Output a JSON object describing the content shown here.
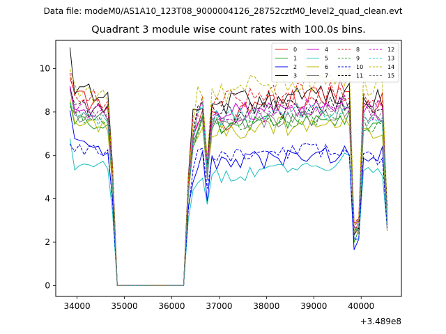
{
  "figure": {
    "suptitle": "Data file: modeM0/AS1A10_123T08_9000004126_28752cztM0_level2_quad_clean.evt",
    "title": "Quadrant 3 module wise count rates with 100.0s bins."
  },
  "chart_data": {
    "type": "line",
    "title": "Quadrant 3 module wise count rates with 100.0s bins.",
    "xlabel": "",
    "ylabel": "",
    "x_offset_label": "+3.489e8",
    "xlim": [
      33550,
      40850
    ],
    "ylim": [
      -0.5,
      11.3
    ],
    "xticks": [
      34000,
      35000,
      36000,
      37000,
      38000,
      39000,
      40000
    ],
    "xtick_labels": [
      "34000",
      "35000",
      "36000",
      "37000",
      "38000",
      "39000",
      "40000"
    ],
    "yticks": [
      0,
      2,
      4,
      6,
      8,
      10
    ],
    "ytick_labels": [
      "0",
      "2",
      "4",
      "6",
      "8",
      "10"
    ],
    "grid": false,
    "legend_placement": "top-right",
    "segments": [
      {
        "x_start": 33850,
        "x_end": 34650
      },
      {
        "x_start": 34750,
        "x_end": 34750
      },
      {
        "x_start": 34850,
        "x_end": 36250
      },
      {
        "x_start": 36350,
        "x_end": 36350
      },
      {
        "x_start": 36450,
        "x_end": 39750
      },
      {
        "x_start": 39850,
        "x_end": 40550
      }
    ],
    "series": [
      {
        "name": "0",
        "color": "#e41a1c",
        "dash": "solid",
        "levels": [
          9.6,
          8.6,
          8.3,
          9.2,
          8.8,
          8.5,
          7.3,
          2.6
        ],
        "amp": 0.6,
        "mid_scale": 0.6,
        "plateau_trend": [
          7.4,
          8.2,
          9.0
        ],
        "seed": 1
      },
      {
        "name": "1",
        "color": "#1a9a1a",
        "dash": "solid",
        "levels": [
          8.4,
          7.6,
          7.4,
          8.0,
          7.5,
          7.3,
          6.8,
          2.3
        ],
        "amp": 0.4,
        "mid_scale": 0.6,
        "plateau_trend": [
          7.2,
          7.5,
          7.7
        ],
        "seed": 2
      },
      {
        "name": "2",
        "color": "#0000ee",
        "dash": "solid",
        "levels": [
          8.0,
          6.7,
          6.0,
          6.2,
          6.1,
          6.0,
          5.2,
          2.0
        ],
        "amp": 0.45,
        "mid_scale": 0.6,
        "plateau_trend": [
          5.5,
          5.8,
          6.1
        ],
        "seed": 3
      },
      {
        "name": "3",
        "color": "#111111",
        "dash": "solid",
        "levels": [
          10.8,
          9.2,
          8.6,
          9.6,
          9.0,
          8.8,
          8.0,
          2.7
        ],
        "amp": 0.6,
        "mid_scale": 0.6,
        "plateau_trend": [
          8.3,
          8.5,
          8.9
        ],
        "seed": 4
      },
      {
        "name": "4",
        "color": "#cc00cc",
        "dash": "solid",
        "levels": [
          9.0,
          8.1,
          7.9,
          8.6,
          8.2,
          8.0,
          7.6,
          2.5
        ],
        "amp": 0.5,
        "mid_scale": 0.6,
        "plateau_trend": [
          7.7,
          8.1,
          8.4
        ],
        "seed": 5
      },
      {
        "name": "5",
        "color": "#18c0c0",
        "dash": "solid",
        "levels": [
          6.6,
          5.6,
          5.6,
          5.9,
          5.6,
          5.3,
          4.6,
          1.8
        ],
        "amp": 0.35,
        "mid_scale": 0.6,
        "plateau_trend": [
          4.9,
          5.3,
          5.8
        ],
        "seed": 6
      },
      {
        "name": "6",
        "color": "#b8b800",
        "dash": "solid",
        "levels": [
          8.3,
          7.6,
          7.3,
          7.9,
          7.5,
          7.2,
          6.7,
          2.2
        ],
        "amp": 0.45,
        "mid_scale": 0.6,
        "plateau_trend": [
          7.1,
          7.3,
          7.6
        ],
        "seed": 7
      },
      {
        "name": "7",
        "color": "#808080",
        "dash": "solid",
        "levels": [
          8.7,
          7.8,
          7.7,
          8.3,
          7.9,
          7.7,
          7.2,
          2.4
        ],
        "amp": 0.45,
        "mid_scale": 0.6,
        "plateau_trend": [
          7.4,
          7.7,
          7.9
        ],
        "seed": 8
      },
      {
        "name": "8",
        "color": "#e41a1c",
        "dash": "dashed",
        "levels": [
          10.2,
          9.0,
          8.5,
          9.4,
          8.9,
          8.7,
          8.1,
          2.6
        ],
        "amp": 0.55,
        "mid_scale": 0.6,
        "plateau_trend": [
          8.3,
          8.8,
          9.0
        ],
        "seed": 9
      },
      {
        "name": "9",
        "color": "#1a9a1a",
        "dash": "dashed",
        "levels": [
          8.5,
          7.8,
          7.6,
          8.1,
          7.7,
          7.5,
          7.0,
          2.3
        ],
        "amp": 0.4,
        "mid_scale": 0.6,
        "plateau_trend": [
          7.3,
          7.6,
          7.9
        ],
        "seed": 10
      },
      {
        "name": "10",
        "color": "#0000ee",
        "dash": "dashed",
        "levels": [
          6.7,
          6.4,
          6.1,
          6.3,
          6.0,
          5.9,
          5.4,
          1.9
        ],
        "amp": 0.35,
        "mid_scale": 0.6,
        "plateau_trend": [
          5.9,
          6.1,
          6.3
        ],
        "seed": 11
      },
      {
        "name": "11",
        "color": "#111111",
        "dash": "dashed",
        "levels": [
          9.3,
          8.3,
          8.0,
          8.8,
          8.3,
          8.1,
          7.7,
          2.5
        ],
        "amp": 0.5,
        "mid_scale": 0.6,
        "plateau_trend": [
          7.8,
          8.1,
          8.4
        ],
        "seed": 12
      },
      {
        "name": "12",
        "color": "#cc00cc",
        "dash": "dashed",
        "levels": [
          9.3,
          8.3,
          8.0,
          8.7,
          8.3,
          8.1,
          7.6,
          2.5
        ],
        "amp": 0.5,
        "mid_scale": 0.6,
        "plateau_trend": [
          7.7,
          8.0,
          8.4
        ],
        "seed": 13
      },
      {
        "name": "13",
        "color": "#18c0c0",
        "dash": "dashed",
        "levels": [
          8.5,
          7.9,
          7.7,
          8.2,
          7.8,
          7.6,
          7.1,
          2.3
        ],
        "amp": 0.45,
        "mid_scale": 0.6,
        "plateau_trend": [
          7.6,
          7.9,
          8.2
        ],
        "seed": 14
      },
      {
        "name": "14",
        "color": "#b8b800",
        "dash": "dashed",
        "levels": [
          10.0,
          8.9,
          8.7,
          9.6,
          9.3,
          9.1,
          8.5,
          2.7
        ],
        "amp": 0.6,
        "mid_scale": 0.6,
        "plateau_trend": [
          8.8,
          9.3,
          9.5
        ],
        "seed": 15
      },
      {
        "name": "15",
        "color": "#808080",
        "dash": "dashed",
        "levels": [
          9.0,
          8.0,
          7.8,
          8.4,
          8.0,
          7.8,
          7.3,
          2.4
        ],
        "amp": 0.45,
        "mid_scale": 0.6,
        "plateau_trend": [
          7.6,
          7.9,
          8.2
        ],
        "seed": 16
      }
    ]
  }
}
